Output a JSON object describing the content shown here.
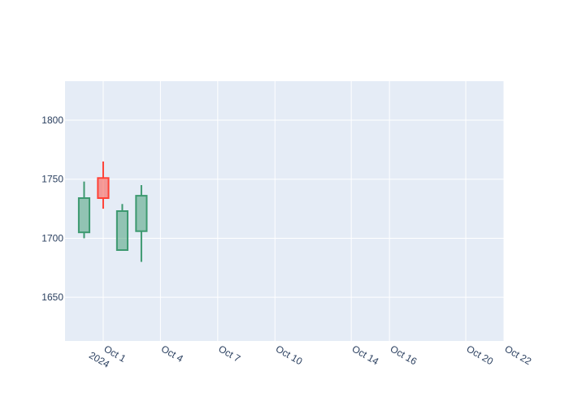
{
  "chart_data": {
    "type": "candlestick",
    "title": "",
    "xlabel": "",
    "ylabel": "",
    "grid": true,
    "legend": "none",
    "xlim": [
      "2024-09-29",
      "2024-10-22"
    ],
    "ylim": [
      1613,
      1833
    ],
    "y_ticks": [
      1650,
      1700,
      1750,
      1800
    ],
    "x_ticks": [
      {
        "date": "2024-10-01",
        "label": "Oct 1",
        "sublabel": "2024"
      },
      {
        "date": "2024-10-04",
        "label": "Oct 4",
        "sublabel": ""
      },
      {
        "date": "2024-10-07",
        "label": "Oct 7",
        "sublabel": ""
      },
      {
        "date": "2024-10-10",
        "label": "Oct 10",
        "sublabel": ""
      },
      {
        "date": "2024-10-14",
        "label": "Oct 14",
        "sublabel": ""
      },
      {
        "date": "2024-10-16",
        "label": "Oct 16",
        "sublabel": ""
      },
      {
        "date": "2024-10-20",
        "label": "Oct 20",
        "sublabel": ""
      },
      {
        "date": "2024-10-22",
        "label": "Oct 22",
        "sublabel": ""
      }
    ],
    "colors": {
      "increasing": "#3D9970",
      "decreasing": "#FF4136",
      "plot_bg": "#E5ECF6",
      "grid": "#ffffff",
      "tick_text": "#2a3f5f"
    },
    "candles": [
      {
        "date": "2024-09-30",
        "open": 1705,
        "high": 1748,
        "low": 1700,
        "close": 1734,
        "direction": "increasing"
      },
      {
        "date": "2024-10-01",
        "open": 1751,
        "high": 1765,
        "low": 1725,
        "close": 1734,
        "direction": "decreasing"
      },
      {
        "date": "2024-10-02",
        "open": 1690,
        "high": 1729,
        "low": 1690,
        "close": 1723,
        "direction": "increasing"
      },
      {
        "date": "2024-10-03",
        "open": 1706,
        "high": 1745,
        "low": 1680,
        "close": 1736,
        "direction": "increasing"
      }
    ]
  }
}
